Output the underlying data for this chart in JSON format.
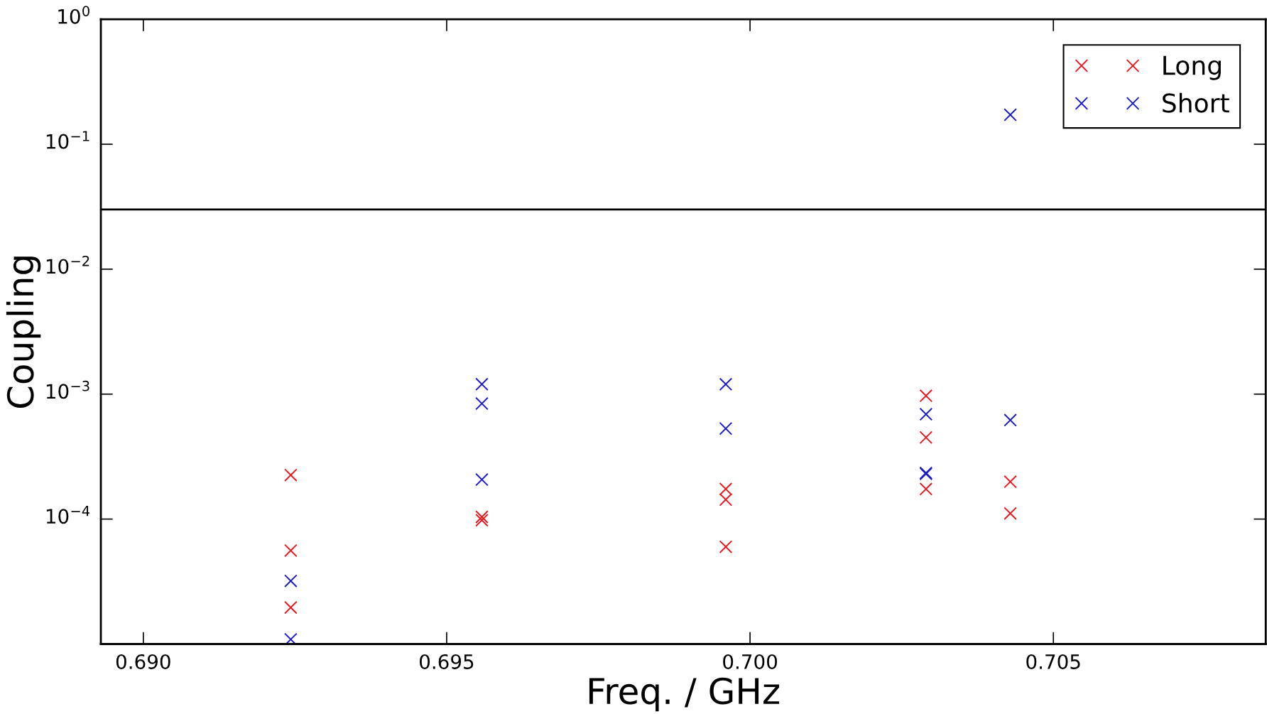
{
  "chart_data": {
    "type": "scatter",
    "xlabel": "Freq. / GHz",
    "ylabel": "Coupling",
    "log": "y",
    "marker": "cross",
    "legend": "top right",
    "grid": false,
    "xlim": [
      0.6893,
      0.7085
    ],
    "xticks": [
      {
        "value": 0.69,
        "label": "0.690"
      },
      {
        "value": 0.695,
        "label": "0.695"
      },
      {
        "value": 0.7,
        "label": "0.700"
      },
      {
        "value": 0.705,
        "label": "0.705"
      }
    ],
    "ylim": [
      1e-05,
      1
    ],
    "yticks": [
      {
        "value": 0.0001,
        "label": "10$^{−4}$"
      },
      {
        "value": 0.001,
        "label": "10$^{−3}$"
      },
      {
        "value": 0.01,
        "label": "10$^{−2}$"
      },
      {
        "value": 0.1,
        "label": "10$^{−1}$"
      },
      {
        "value": 1,
        "label": "10$^{0}$"
      }
    ],
    "ref_lines": [
      {
        "axis": "y",
        "value": 0.03,
        "color": "#000000"
      }
    ],
    "series": [
      {
        "name": "Long",
        "color": "#e8181e",
        "x": [
          0.69243,
          0.69243,
          0.69243,
          0.69558,
          0.69558,
          0.6996,
          0.6996,
          0.6996,
          0.7029,
          0.7029,
          0.7029,
          0.70429,
          0.70429
        ],
        "values": [
          0.000225,
          5.6e-05,
          1.96e-05,
          0.000104,
          9.8e-05,
          0.000174,
          0.000143,
          6e-05,
          0.00097,
          0.00045,
          0.000174,
          0.000199,
          0.000111
        ]
      },
      {
        "name": "Short",
        "color": "#1a1ac8",
        "x": [
          0.69243,
          0.69243,
          0.69558,
          0.69558,
          0.69558,
          0.6996,
          0.6996,
          0.7029,
          0.7029,
          0.7029,
          0.70429,
          0.70429
        ],
        "values": [
          3.2e-05,
          1.09e-05,
          0.0012,
          0.00084,
          0.000207,
          0.0012,
          0.00053,
          0.00069,
          0.000234,
          0.00023,
          0.00062,
          0.172
        ]
      }
    ]
  }
}
